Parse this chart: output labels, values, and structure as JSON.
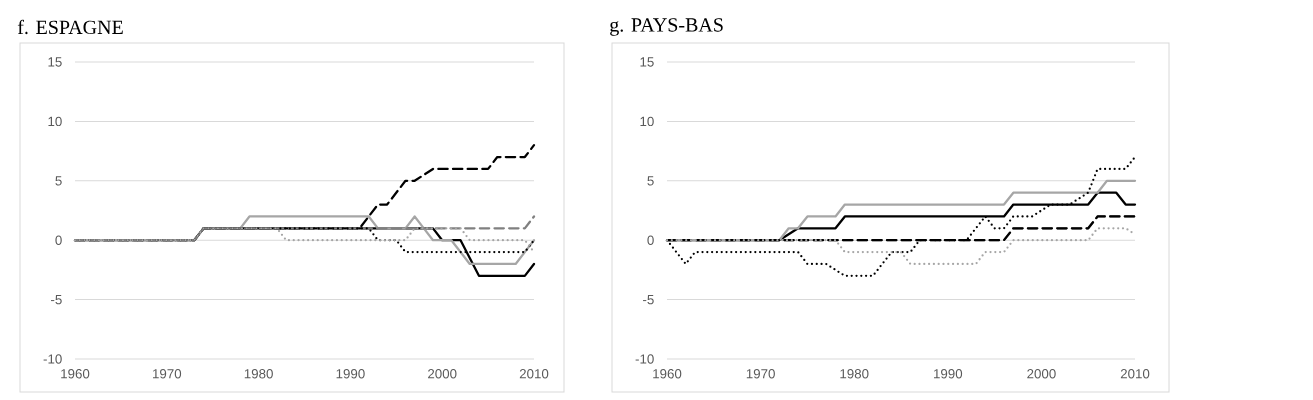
{
  "chart_data": [
    {
      "type": "line",
      "title": "f. ESPAGNE",
      "xlim": [
        1960,
        2010
      ],
      "ylim": [
        -10,
        15
      ],
      "xticks": [
        1960,
        1970,
        1980,
        1990,
        2000,
        2010
      ],
      "yticks": [
        -10,
        -5,
        0,
        5,
        10,
        15
      ],
      "grid": "y",
      "series": [
        {
          "color": "#000000",
          "line_style": "solid",
          "x": [
            1960,
            1973,
            1974,
            1999,
            2000,
            2002,
            2004,
            2009,
            2010
          ],
          "values": [
            0,
            0,
            1,
            1,
            0,
            0,
            -3,
            -3,
            -2
          ]
        },
        {
          "color": "#a6a6a6",
          "line_style": "solid",
          "x": [
            1960,
            1973,
            1974,
            1978,
            1979,
            1992,
            1993,
            1996,
            1997,
            1998,
            1999,
            2001,
            2003,
            2008,
            2010
          ],
          "values": [
            0,
            0,
            1,
            1,
            2,
            2,
            1,
            1,
            2,
            1,
            0,
            0,
            -2,
            -2,
            0
          ]
        },
        {
          "color": "#000000",
          "line_style": "dashed",
          "x": [
            1960,
            1973,
            1974,
            1991,
            1993,
            1994,
            1996,
            1997,
            1999,
            2005,
            2006,
            2009,
            2010
          ],
          "values": [
            0,
            0,
            1,
            1,
            3,
            3,
            5,
            5,
            6,
            6,
            7,
            7,
            8
          ]
        },
        {
          "color": "#808080",
          "line_style": "dashed",
          "x": [
            1960,
            1973,
            1974,
            2009,
            2010
          ],
          "values": [
            0,
            0,
            1,
            1,
            2
          ]
        },
        {
          "color": "#000000",
          "line_style": "dotted",
          "x": [
            1960,
            1973,
            1974,
            1992,
            1993,
            1995,
            1996,
            2009,
            2010
          ],
          "values": [
            0,
            0,
            1,
            1,
            0,
            0,
            -1,
            -1,
            0
          ]
        },
        {
          "color": "#a6a6a6",
          "line_style": "dotted",
          "x": [
            1960,
            1973,
            1974,
            1982,
            1983,
            1996,
            1997,
            2002,
            2003,
            2009,
            2010
          ],
          "values": [
            0,
            0,
            1,
            1,
            0,
            0,
            1,
            1,
            0,
            0,
            -1
          ]
        }
      ]
    },
    {
      "type": "line",
      "title": "g. PAYS-BAS",
      "xlim": [
        1960,
        2010
      ],
      "ylim": [
        -10,
        15
      ],
      "xticks": [
        1960,
        1970,
        1980,
        1990,
        2000,
        2010
      ],
      "yticks": [
        -10,
        -5,
        0,
        5,
        10,
        15
      ],
      "grid": "y",
      "series": [
        {
          "color": "#000000",
          "line_style": "solid",
          "x": [
            1960,
            1972,
            1974,
            1978,
            1979,
            1996,
            1997,
            2005,
            2006,
            2008,
            2009,
            2010
          ],
          "values": [
            0,
            0,
            1,
            1,
            2,
            2,
            3,
            3,
            4,
            4,
            3,
            3
          ]
        },
        {
          "color": "#a6a6a6",
          "line_style": "solid",
          "x": [
            1960,
            1972,
            1973,
            1974,
            1975,
            1978,
            1979,
            1996,
            1997,
            2006,
            2007,
            2010
          ],
          "values": [
            0,
            0,
            1,
            1,
            2,
            2,
            3,
            3,
            4,
            4,
            5,
            5
          ]
        },
        {
          "color": "#808080",
          "line_style": "dashed",
          "x": [
            1960,
            1996,
            1997,
            2005,
            2006,
            2010
          ],
          "values": [
            0,
            0,
            1,
            1,
            2,
            2
          ]
        },
        {
          "color": "#000000",
          "line_style": "dashed",
          "x": [
            1960,
            1996,
            1997,
            2005,
            2006,
            2010
          ],
          "values": [
            0,
            0,
            1,
            1,
            2,
            2
          ]
        },
        {
          "color": "#000000",
          "line_style": "dotted",
          "x": [
            1960,
            1962,
            1963,
            1974,
            1975,
            1977,
            1979,
            1982,
            1984,
            1986,
            1987,
            1992,
            1994,
            1995,
            1996,
            1997,
            1999,
            2001,
            2003,
            2005,
            2006,
            2009,
            2010
          ],
          "values": [
            0,
            -2,
            -1,
            -1,
            -2,
            -2,
            -3,
            -3,
            -1,
            -1,
            0,
            0,
            2,
            1,
            1,
            2,
            2,
            3,
            3,
            4,
            6,
            6,
            7
          ]
        },
        {
          "color": "#a6a6a6",
          "line_style": "dotted",
          "x": [
            1960,
            1978,
            1979,
            1985,
            1986,
            1993,
            1994,
            1996,
            1997,
            2005,
            2006,
            2009,
            2010
          ],
          "values": [
            0,
            0,
            -1,
            -1,
            -2,
            -2,
            -1,
            -1,
            0,
            0,
            1,
            1,
            0.5
          ]
        }
      ]
    }
  ]
}
